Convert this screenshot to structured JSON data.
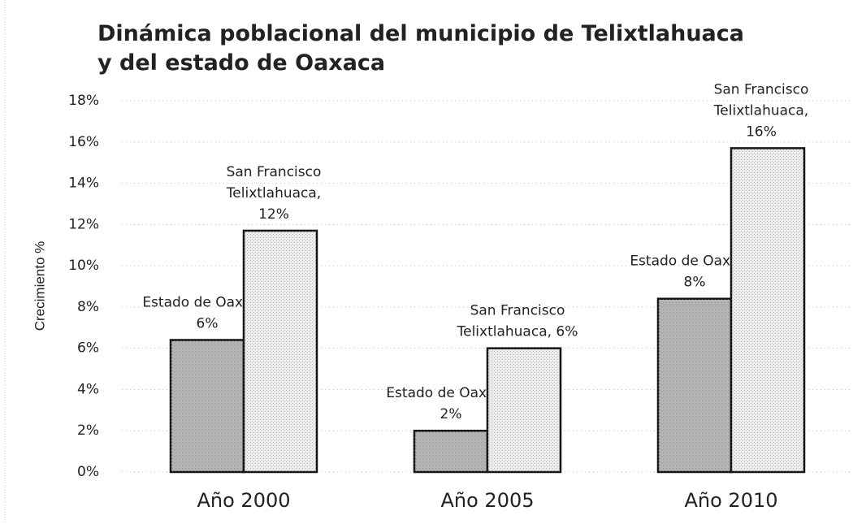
{
  "chart_data": {
    "type": "bar",
    "title": "Dinámica poblacional del municipio de Telixtlahuaca\ny del estado de Oaxaca",
    "y_label": "Crecimiento %",
    "categories": [
      "Año 2000",
      "Año 2005",
      "Año 2010"
    ],
    "series": [
      {
        "name": "Estado de Oaxaca",
        "color": "#b4b4b4",
        "values": [
          6.4,
          2,
          8.4
        ],
        "value_labels": [
          "Estado de Oaxaca,\n6%",
          "Estado de Oaxaca,\n2%",
          "Estado de Oaxaca,\n8%"
        ]
      },
      {
        "name": "San Francisco Telixtlahuaca",
        "color": "#ececec",
        "values": [
          11.7,
          6,
          15.7
        ],
        "value_labels": [
          "San Francisco\nTelixtlahuaca,\n12%",
          "San Francisco\nTelixtlahuaca, 6%",
          "San Francisco\nTelixtlahuaca,\n16%"
        ]
      }
    ],
    "ylim": [
      0,
      18
    ],
    "yticks": [
      {
        "value": 0,
        "label": "0%"
      },
      {
        "value": 2,
        "label": "2%"
      },
      {
        "value": 4,
        "label": "4%"
      },
      {
        "value": 6,
        "label": "6%"
      },
      {
        "value": 8,
        "label": "8%"
      },
      {
        "value": 10,
        "label": "10%"
      },
      {
        "value": 12,
        "label": "12%"
      },
      {
        "value": 14,
        "label": "14%"
      },
      {
        "value": 16,
        "label": "16%"
      },
      {
        "value": 18,
        "label": "18%"
      }
    ],
    "grid": true
  }
}
